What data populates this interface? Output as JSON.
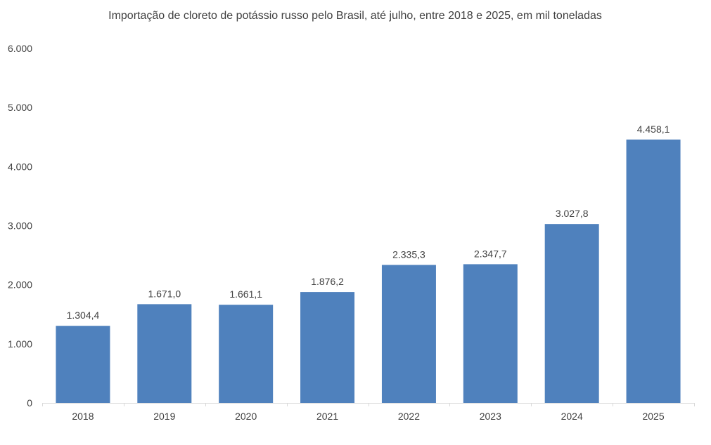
{
  "chart_data": {
    "type": "bar",
    "title": "Importação de cloreto de potássio russo pelo Brasil, até julho, entre 2018 e 2025, em mil toneladas",
    "xlabel": "",
    "ylabel": "",
    "categories": [
      "2018",
      "2019",
      "2020",
      "2021",
      "2022",
      "2023",
      "2024",
      "2025"
    ],
    "values": [
      1304.4,
      1671.0,
      1661.1,
      1876.2,
      2335.3,
      2347.7,
      3027.8,
      4458.1
    ],
    "data_labels": [
      "1.304,4",
      "1.671,0",
      "1.661,1",
      "1.876,2",
      "2.335,3",
      "2.347,7",
      "3.027,8",
      "4.458,1"
    ],
    "ylim": [
      0,
      6000
    ],
    "yticks": [
      0,
      1000,
      2000,
      3000,
      4000,
      5000,
      6000
    ],
    "ytick_labels": [
      "0",
      "1.000",
      "2.000",
      "3.000",
      "4.000",
      "5.000",
      "6.000"
    ],
    "grid": false,
    "legend": "none",
    "bar_color": "#4f81bd"
  }
}
